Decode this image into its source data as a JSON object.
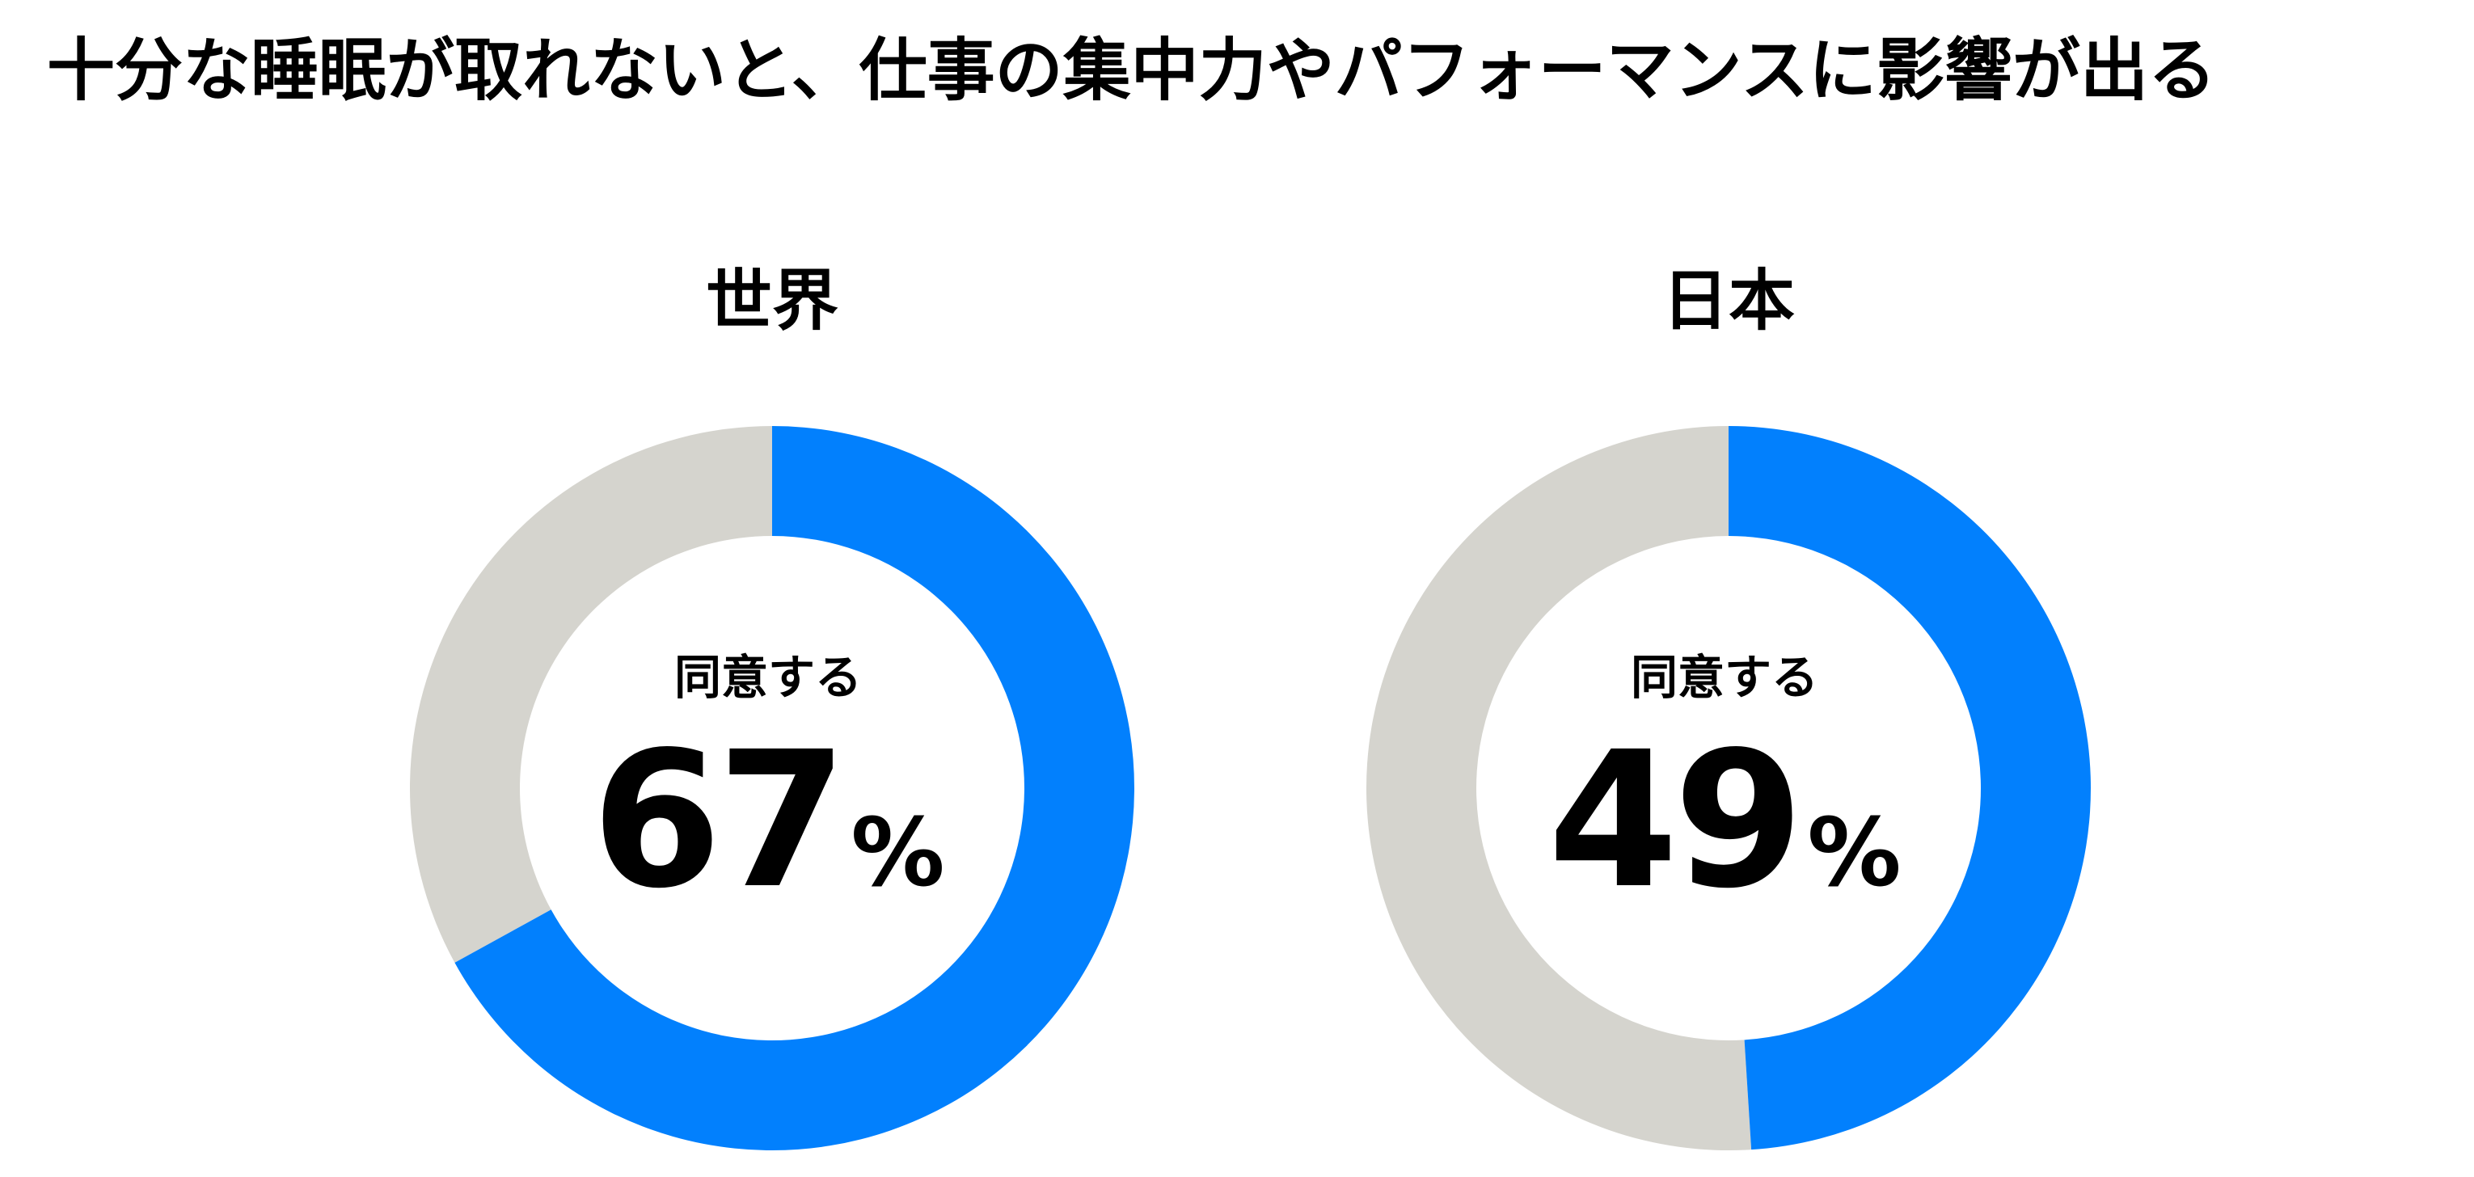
{
  "title": "十分な睡眠が取れないと、仕事の集中力やパフォーマンスに影響が出る",
  "colors": {
    "agree": "#0280FD",
    "other": "#D5D4CE",
    "text": "#000000"
  },
  "chart_data": [
    {
      "type": "pie",
      "title": "世界",
      "center_label": "同意する",
      "unit": "%",
      "value": 67,
      "slices": [
        {
          "label": "同意する",
          "value": 67
        },
        {
          "label": "",
          "value": 33
        }
      ]
    },
    {
      "type": "pie",
      "title": "日本",
      "center_label": "同意する",
      "unit": "%",
      "value": 49,
      "slices": [
        {
          "label": "同意する",
          "value": 49
        },
        {
          "label": "",
          "value": 51
        }
      ]
    }
  ]
}
